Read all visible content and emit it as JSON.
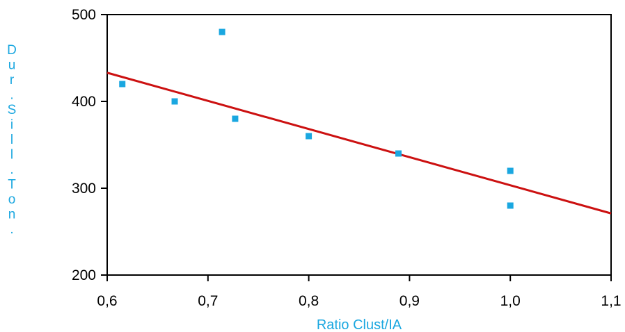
{
  "chart_data": {
    "type": "scatter",
    "title": "",
    "xlabel": "Ratio Clust/IA",
    "ylabel": "Dur.Sill.Ton.",
    "xlim": [
      0.6,
      1.1
    ],
    "ylim": [
      200,
      500
    ],
    "x_ticks": [
      0.6,
      0.7,
      0.8,
      0.9,
      1.0,
      1.1
    ],
    "x_tick_labels": [
      "0,6",
      "0,7",
      "0,8",
      "0,9",
      "1,0",
      "1,1"
    ],
    "y_ticks": [
      200,
      300,
      400,
      500
    ],
    "y_tick_labels": [
      "200",
      "300",
      "400",
      "500"
    ],
    "grid": false,
    "legend": "none",
    "series": [
      {
        "type": "scatter",
        "x": [
          0.615,
          0.667,
          0.714,
          0.727,
          0.8,
          0.889,
          1.0,
          1.0
        ],
        "y": [
          420,
          400,
          480,
          380,
          360,
          340,
          320,
          280
        ]
      },
      {
        "type": "line",
        "x": [
          0.6,
          1.1
        ],
        "y": [
          433,
          271
        ]
      }
    ],
    "colors": {
      "points": "#1aa7e0",
      "trendline": "#cc1111",
      "axis_title": "#1aa7e0",
      "axis": "#000000"
    }
  }
}
